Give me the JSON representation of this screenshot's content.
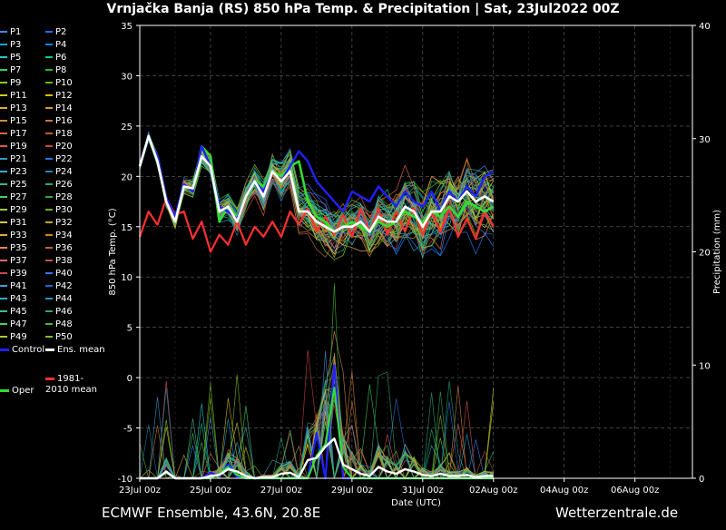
{
  "title": "Vrnjačka Banja  (RS)  850 hPa Temp. & Precipitation | Sat, 23Jul2022 00Z",
  "footer": {
    "left": "ECMWF Ensemble, 43.6N, 20.8E",
    "right": "Wetterzentrale.de"
  },
  "colors": {
    "background": "#000000",
    "control": "#2020ff",
    "ens_mean": "#ffffff",
    "oper": "#33dd33",
    "climate_mean": "#ff3030",
    "grid": "#666666"
  },
  "chart_data": {
    "type": "line",
    "xlabel": "Date (UTC)",
    "ylabel": "850 hPa Temp. (°C)",
    "y2label": "Precipitation (mm)",
    "ylim": [
      -10,
      35
    ],
    "y2lim": [
      0,
      40
    ],
    "yticks": [
      -10,
      -5,
      0,
      5,
      10,
      15,
      20,
      25,
      30,
      35
    ],
    "y2ticks": [
      0,
      10,
      20,
      30,
      40
    ],
    "xlim": [
      0,
      15.625
    ],
    "x_unit": "days after 23Jul2022 00Z",
    "xticks": [
      {
        "day": 0,
        "label": "23Jul 00z"
      },
      {
        "day": 2,
        "label": "25Jul 00z"
      },
      {
        "day": 4,
        "label": "27Jul 00z"
      },
      {
        "day": 6,
        "label": "29Jul 00z"
      },
      {
        "day": 8,
        "label": "31Jul 00z"
      },
      {
        "day": 10,
        "label": "02Aug 00z"
      },
      {
        "day": 12,
        "label": "04Aug 00z"
      },
      {
        "day": 14,
        "label": "06Aug 00z"
      }
    ],
    "grid": true,
    "legend_position": "left",
    "legend": {
      "members": [
        "P1",
        "P2",
        "P3",
        "P4",
        "P5",
        "P6",
        "P7",
        "P8",
        "P9",
        "P10",
        "P11",
        "P12",
        "P13",
        "P14",
        "P15",
        "P16",
        "P17",
        "P18",
        "P19",
        "P20",
        "P21",
        "P22",
        "P23",
        "P24",
        "P25",
        "P26",
        "P27",
        "P28",
        "P29",
        "P30",
        "P31",
        "P32",
        "P33",
        "P34",
        "P35",
        "P36",
        "P37",
        "P38",
        "P39",
        "P40",
        "P41",
        "P42",
        "P43",
        "P44",
        "P45",
        "P46",
        "P47",
        "P48",
        "P49",
        "P50"
      ],
      "member_colors": [
        "#4488ff",
        "#2266ff",
        "#00aadd",
        "#0088ff",
        "#22cccc",
        "#00cc88",
        "#33cc66",
        "#22bb22",
        "#88cc22",
        "#66bb00",
        "#cccc22",
        "#ddbb00",
        "#ddaa33",
        "#dd9922",
        "#cc8844",
        "#cc7733",
        "#dd6644",
        "#cc5533",
        "#dd5555",
        "#cc4444",
        "#3399cc",
        "#2277dd",
        "#44aacc",
        "#2288aa",
        "#33bb99",
        "#22aa77",
        "#44cc66",
        "#33aa44",
        "#99cc33",
        "#77aa22",
        "#cccc44",
        "#bbaa22",
        "#ddaa44",
        "#cc8822",
        "#dd8855",
        "#bb6633",
        "#dd6666",
        "#bb5544",
        "#cc4455",
        "#3377ee",
        "#4499dd",
        "#2266cc",
        "#33aacc",
        "#2299bb",
        "#44bb88",
        "#33aa66",
        "#55cc55",
        "#44bb33",
        "#aacc33",
        "#88bb22"
      ],
      "control_label": "Control",
      "ens_mean_label": "Ens. mean",
      "climate_label": "1981-2010 mean",
      "oper_label": "Oper"
    },
    "series": [
      {
        "name": "Control",
        "axis": "temp",
        "values": [
          21.2,
          23.8,
          22.0,
          17.8,
          16.0,
          19.2,
          18.5,
          23.0,
          21.0,
          17.0,
          16.5,
          15.8,
          18.0,
          19.5,
          18.5,
          20.5,
          19.5,
          21.0,
          22.5,
          21.5,
          19.5,
          18.5,
          17.5,
          16.5,
          18.5,
          18.0,
          17.5,
          19.0,
          18.0,
          17.0,
          18.5,
          17.5,
          17.0,
          18.5,
          16.5,
          18.5,
          17.5,
          19.0,
          18.0,
          20.0,
          20.5
        ]
      },
      {
        "name": "Ens. mean",
        "axis": "temp",
        "values": [
          21.0,
          24.0,
          21.5,
          17.5,
          15.5,
          19.0,
          18.8,
          22.0,
          21.0,
          16.5,
          17.0,
          15.5,
          18.0,
          19.5,
          18.0,
          20.5,
          19.5,
          20.5,
          16.5,
          16.5,
          15.5,
          15.0,
          14.5,
          15.0,
          15.0,
          15.5,
          14.5,
          16.0,
          15.5,
          15.5,
          17.0,
          16.5,
          15.0,
          16.5,
          16.5,
          18.0,
          17.5,
          18.5,
          17.5,
          18.0,
          17.5
        ]
      },
      {
        "name": "Oper",
        "axis": "temp",
        "values": [
          21.0,
          24.0,
          22.0,
          17.8,
          15.5,
          19.0,
          18.5,
          23.0,
          22.0,
          15.5,
          17.0,
          16.0,
          18.0,
          19.5,
          19.0,
          20.5,
          20.0,
          21.0,
          21.5,
          17.5,
          16.0,
          15.5,
          14.5,
          15.0,
          15.5,
          15.0,
          14.5,
          15.5,
          15.0,
          15.5,
          16.5,
          16.0,
          15.5,
          16.5,
          16.0,
          17.0,
          16.0,
          17.5,
          17.0,
          16.5,
          17.0
        ]
      },
      {
        "name": "1981-2010 mean",
        "axis": "temp",
        "values": [
          14.0,
          16.5,
          15.2,
          17.8,
          16.2,
          16.5,
          13.8,
          15.5,
          12.5,
          14.2,
          13.2,
          15.5,
          13.2,
          15.0,
          14.0,
          15.5,
          14.0,
          16.5,
          15.2,
          16.8,
          14.5,
          16.0,
          14.2,
          16.2,
          14.0,
          16.8,
          14.5,
          16.8,
          14.2,
          16.5,
          14.5,
          16.8,
          14.2,
          16.5,
          14.5,
          16.8,
          14.0,
          15.8,
          13.8,
          16.5,
          15.0
        ]
      },
      {
        "name": "Ens. mean precipitation",
        "axis": "precip",
        "values": [
          0,
          0,
          0,
          0.6,
          0,
          0,
          0,
          0,
          0.2,
          0.3,
          0.8,
          0.6,
          0.2,
          0,
          0.1,
          0.1,
          0.4,
          0.5,
          0.1,
          1.6,
          1.8,
          2.8,
          3.5,
          1.2,
          0.8,
          0.4,
          0.2,
          1.0,
          0.6,
          0.4,
          0.8,
          0.6,
          0.3,
          0.2,
          0.4,
          0.2,
          0.2,
          0.3,
          0.1,
          0.2,
          0.2
        ]
      },
      {
        "name": "Control precipitation",
        "axis": "precip",
        "values": [
          0,
          0,
          0,
          0.5,
          0,
          0,
          0,
          0,
          0.5,
          0.2,
          1.2,
          0.1,
          0,
          0,
          0,
          0,
          0,
          0,
          0,
          0,
          4.0,
          0,
          10.0,
          0,
          0,
          0,
          0,
          0,
          0,
          0,
          0,
          0,
          0,
          0,
          0,
          0,
          0,
          0,
          0,
          0,
          0
        ]
      },
      {
        "name": "Oper precipitation",
        "axis": "precip",
        "values": [
          0,
          0,
          0,
          0.5,
          0,
          0,
          0,
          0,
          0,
          0.4,
          1.0,
          0.3,
          0,
          0,
          0,
          0,
          0,
          0,
          0,
          0,
          2.0,
          3.0,
          8.0,
          1.0,
          0,
          0,
          0,
          0,
          0,
          0,
          0,
          0,
          0,
          0,
          0,
          0,
          0,
          0,
          0,
          0,
          0
        ]
      }
    ]
  }
}
